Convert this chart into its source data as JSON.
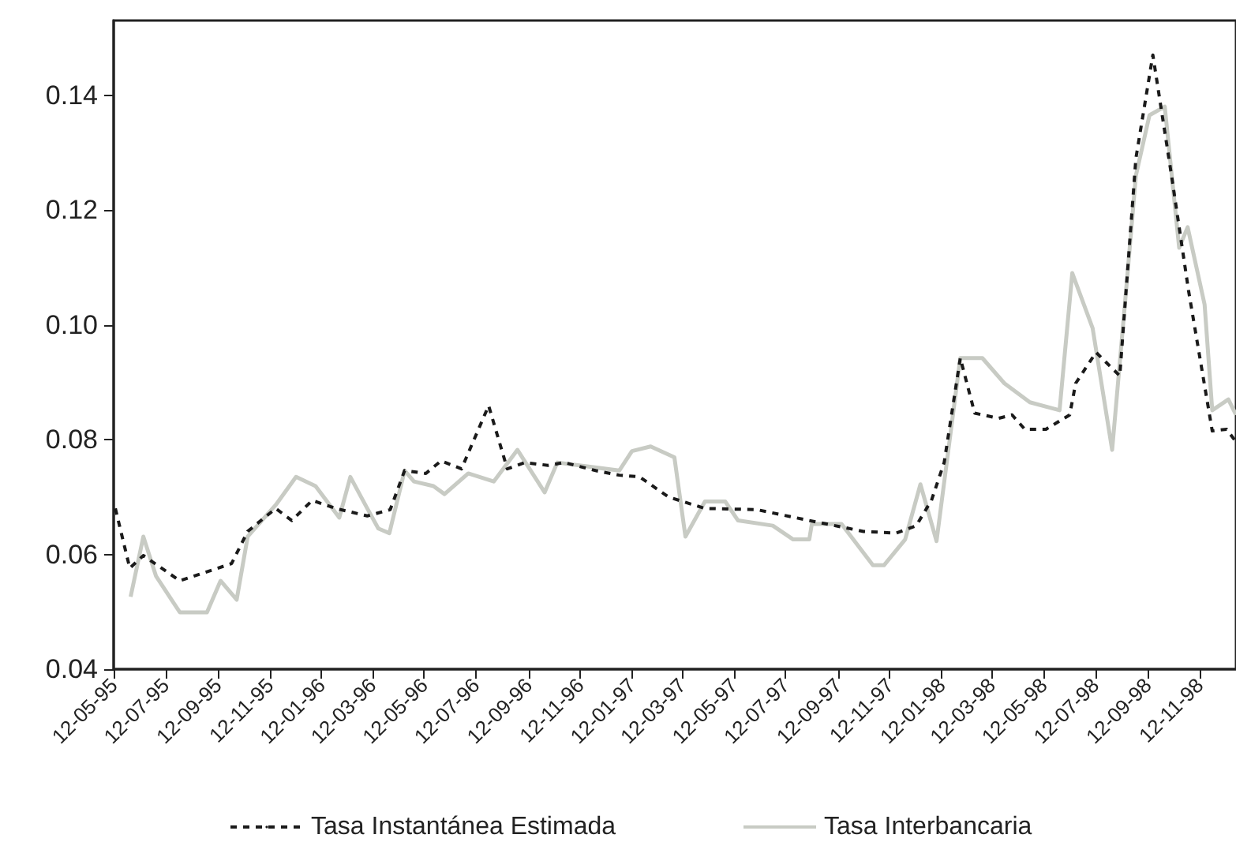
{
  "chart_data": {
    "type": "line",
    "xlim": [
      "1995-05-12",
      "1998-12-25"
    ],
    "xticks": [
      {
        "value": "1995-05-12",
        "label": "12-05-95"
      },
      {
        "value": "1995-07-12",
        "label": "12-07-95"
      },
      {
        "value": "1995-09-12",
        "label": "12-09-95"
      },
      {
        "value": "1995-11-12",
        "label": "12-11-95"
      },
      {
        "value": "1996-01-12",
        "label": "12-01-96"
      },
      {
        "value": "1996-03-12",
        "label": "12-03-96"
      },
      {
        "value": "1996-05-12",
        "label": "12-05-96"
      },
      {
        "value": "1996-07-12",
        "label": "12-07-96"
      },
      {
        "value": "1996-09-12",
        "label": "12-09-96"
      },
      {
        "value": "1996-11-12",
        "label": "12-11-96"
      },
      {
        "value": "1997-01-12",
        "label": "12-01-97"
      },
      {
        "value": "1997-03-12",
        "label": "12-03-97"
      },
      {
        "value": "1997-05-12",
        "label": "12-05-97"
      },
      {
        "value": "1997-07-12",
        "label": "12-07-97"
      },
      {
        "value": "1997-09-12",
        "label": "12-09-97"
      },
      {
        "value": "1997-11-12",
        "label": "12-11-97"
      },
      {
        "value": "1998-01-12",
        "label": "12-01-98"
      },
      {
        "value": "1998-03-12",
        "label": "12-03-98"
      },
      {
        "value": "1998-05-12",
        "label": "12-05-98"
      },
      {
        "value": "1998-07-12",
        "label": "12-07-98"
      },
      {
        "value": "1998-09-12",
        "label": "12-09-98"
      },
      {
        "value": "1998-11-12",
        "label": "12-11-98"
      }
    ],
    "ylim": [
      0.04,
      0.153
    ],
    "yticks": [
      0.04,
      0.06,
      0.08,
      {
        "value": 0.1,
        "label": "0.10"
      },
      0.12,
      0.14
    ],
    "legend": "bottom",
    "marker": "none",
    "series": [
      {
        "name": "Tasa Instantánea Estimada",
        "color": "#1a1a1a",
        "line_style": "dashed",
        "x": [
          "1995-05-14",
          "1995-05-31",
          "1995-06-16",
          "1995-07-29",
          "1995-09-28",
          "1995-10-17",
          "1995-11-19",
          "1995-12-08",
          "1996-01-01",
          "1996-01-29",
          "1996-03-06",
          "1996-04-02",
          "1996-04-19",
          "1996-05-14",
          "1996-06-01",
          "1996-06-25",
          "1996-07-27",
          "1996-08-18",
          "1996-09-08",
          "1996-10-05",
          "1996-10-24",
          "1996-11-30",
          "1996-12-28",
          "1997-01-21",
          "1997-02-24",
          "1997-04-08",
          "1997-06-08",
          "1997-08-09",
          "1997-10-12",
          "1997-11-19",
          "1997-12-13",
          "1997-12-31",
          "1998-01-15",
          "1998-02-03",
          "1998-02-20",
          "1998-03-20",
          "1998-04-05",
          "1998-04-20",
          "1998-05-15",
          "1998-06-12",
          "1998-06-19",
          "1998-07-13",
          "1998-08-10",
          "1998-08-29",
          "1998-09-18",
          "1998-10-10",
          "1998-10-30",
          "1998-11-27",
          "1998-12-14",
          "1998-12-25"
        ],
        "values": [
          0.068,
          0.0576,
          0.0598,
          0.0554,
          0.0584,
          0.064,
          0.068,
          0.0659,
          0.0694,
          0.068,
          0.0667,
          0.0678,
          0.0746,
          0.0741,
          0.0763,
          0.0749,
          0.0859,
          0.0749,
          0.076,
          0.0755,
          0.076,
          0.0746,
          0.0738,
          0.0735,
          0.07,
          0.068,
          0.0678,
          0.0659,
          0.064,
          0.0637,
          0.065,
          0.0694,
          0.076,
          0.0942,
          0.0846,
          0.0837,
          0.0843,
          0.0818,
          0.0818,
          0.0843,
          0.0898,
          0.0952,
          0.0911,
          0.129,
          0.147,
          0.126,
          0.106,
          0.0815,
          0.0818,
          0.0796
        ]
      },
      {
        "name": "Tasa Interbancaria",
        "color": "#c8cbc4",
        "line_style": "solid",
        "x": [
          "1995-06-01",
          "1995-06-16",
          "1995-07-01",
          "1995-07-29",
          "1995-08-30",
          "1995-09-15",
          "1995-10-04",
          "1995-10-17",
          "1995-11-19",
          "1995-12-13",
          "1996-01-05",
          "1996-02-02",
          "1996-02-15",
          "1996-03-06",
          "1996-03-19",
          "1996-04-01",
          "1996-04-19",
          "1996-04-30",
          "1996-05-23",
          "1996-06-05",
          "1996-07-03",
          "1996-08-02",
          "1996-08-30",
          "1996-10-01",
          "1996-10-16",
          "1996-12-28",
          "1997-01-12",
          "1997-02-03",
          "1997-03-03",
          "1997-03-16",
          "1997-04-08",
          "1997-05-02",
          "1997-05-17",
          "1997-06-27",
          "1997-07-21",
          "1997-08-09",
          "1997-08-12",
          "1997-09-16",
          "1997-10-23",
          "1997-11-05",
          "1997-11-30",
          "1997-12-18",
          "1998-01-06",
          "1998-02-03",
          "1998-03-01",
          "1998-03-27",
          "1998-04-26",
          "1998-05-31",
          "1998-06-15",
          "1998-07-09",
          "1998-08-01",
          "1998-08-16",
          "1998-08-29",
          "1998-09-14",
          "1998-10-02",
          "1998-10-19",
          "1998-10-29",
          "1998-11-18",
          "1998-11-27",
          "1998-12-16",
          "1998-12-25"
        ],
        "values": [
          0.0526,
          0.0631,
          0.0562,
          0.0499,
          0.0499,
          0.0554,
          0.0521,
          0.0631,
          0.0686,
          0.0735,
          0.0719,
          0.0664,
          0.0735,
          0.068,
          0.0645,
          0.0637,
          0.0746,
          0.0727,
          0.0719,
          0.0705,
          0.0741,
          0.0727,
          0.0782,
          0.0708,
          0.076,
          0.0746,
          0.078,
          0.0788,
          0.0769,
          0.0631,
          0.0692,
          0.0692,
          0.0659,
          0.065,
          0.0626,
          0.0626,
          0.0653,
          0.0653,
          0.0581,
          0.0581,
          0.0626,
          0.0722,
          0.0623,
          0.0942,
          0.0942,
          0.0898,
          0.0865,
          0.0851,
          0.109,
          0.0994,
          0.0782,
          0.1035,
          0.126,
          0.1365,
          0.138,
          0.1134,
          0.117,
          0.1035,
          0.0851,
          0.087,
          0.0843
        ]
      }
    ]
  }
}
